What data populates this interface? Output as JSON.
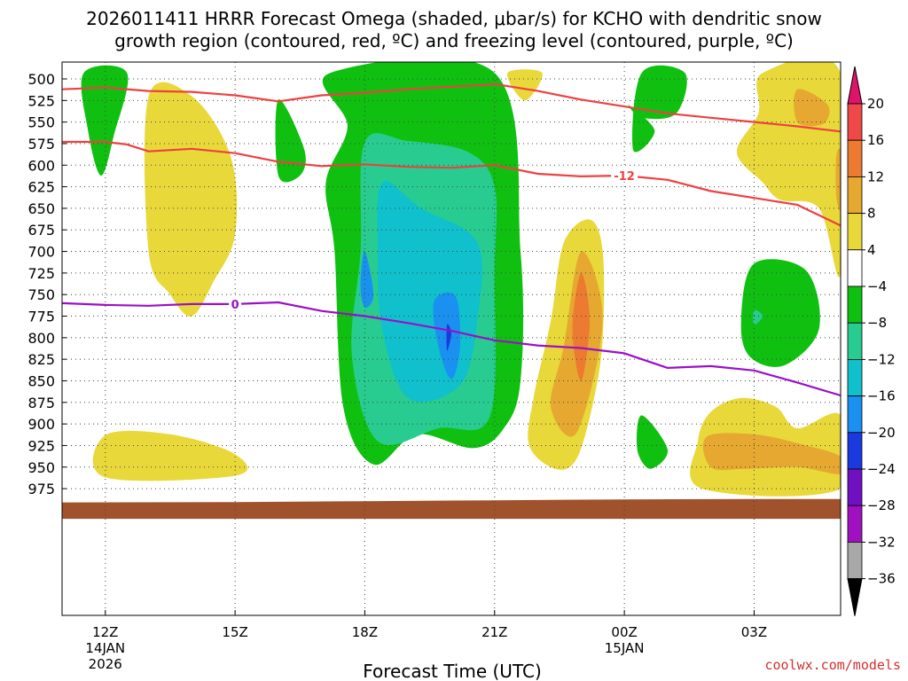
{
  "chart_data": {
    "type": "contour",
    "title_line1": "2026011411 HRRR Forecast Omega (shaded, μbar/s) for KCHO with dendritic snow",
    "title_line2": "growth region (contoured, red, ºC) and freezing level (contoured, purple, ºC)",
    "xlabel": "Forecast Time (UTC)",
    "credit": "coolwx.com/models",
    "ylabel_unit": "hPa",
    "y_levels": [
      500,
      525,
      550,
      575,
      600,
      625,
      650,
      675,
      700,
      725,
      750,
      775,
      800,
      825,
      850,
      875,
      900,
      925,
      950,
      975
    ],
    "x_range_hours": [
      11,
      29
    ],
    "x_ticks": [
      {
        "hour": 12,
        "label": "12Z",
        "sub1": "14JAN",
        "sub2": "2026"
      },
      {
        "hour": 15,
        "label": "15Z",
        "sub1": "",
        "sub2": ""
      },
      {
        "hour": 18,
        "label": "18Z",
        "sub1": "",
        "sub2": ""
      },
      {
        "hour": 21,
        "label": "21Z",
        "sub1": "",
        "sub2": ""
      },
      {
        "hour": 24,
        "label": "00Z",
        "sub1": "15JAN",
        "sub2": ""
      },
      {
        "hour": 27,
        "label": "03Z",
        "sub1": "",
        "sub2": ""
      }
    ],
    "colorbar": {
      "labels": [
        "20",
        "16",
        "12",
        "8",
        "4",
        "−4",
        "−8",
        "−12",
        "−16",
        "−20",
        "−24",
        "−28",
        "−32",
        "−36"
      ],
      "colors": [
        "#e0136a",
        "#ee4848",
        "#ec7a30",
        "#e6a830",
        "#e8d83a",
        "#ffffff",
        "#10c010",
        "#28cc90",
        "#10c0cc",
        "#1a90f0",
        "#1a3ae0",
        "#7010c0",
        "#a010c0",
        "#a8a8a8",
        "#000000"
      ]
    },
    "contours": [
      {
        "name": "dgz -12 upper",
        "color": "#ee4040",
        "label": "",
        "points": [
          [
            11,
            512
          ],
          [
            12,
            510
          ],
          [
            13,
            514
          ],
          [
            14,
            515
          ],
          [
            15,
            519
          ],
          [
            16,
            526
          ],
          [
            17,
            519
          ],
          [
            18,
            516
          ],
          [
            19,
            512
          ],
          [
            20,
            509
          ],
          [
            20.8,
            507
          ],
          [
            21,
            506
          ],
          [
            22,
            514
          ],
          [
            23,
            524
          ],
          [
            24,
            532
          ],
          [
            25,
            540
          ],
          [
            26,
            545
          ],
          [
            27,
            550
          ],
          [
            28,
            555
          ],
          [
            29,
            561
          ]
        ]
      },
      {
        "name": "dgz -12 lower",
        "color": "#ee4040",
        "label": "-12",
        "points": [
          [
            11,
            573
          ],
          [
            12,
            573
          ],
          [
            12.5,
            576
          ],
          [
            13,
            584
          ],
          [
            14,
            581
          ],
          [
            15,
            586
          ],
          [
            16,
            596
          ],
          [
            17,
            601
          ],
          [
            18,
            599
          ],
          [
            19,
            602
          ],
          [
            20,
            603
          ],
          [
            21,
            600
          ],
          [
            22,
            610
          ],
          [
            23,
            613
          ],
          [
            24,
            612
          ],
          [
            25,
            617
          ],
          [
            26,
            630
          ],
          [
            27,
            638
          ],
          [
            28,
            646
          ],
          [
            29,
            670
          ]
        ]
      },
      {
        "name": "freezing level 0C",
        "color": "#9b10c8",
        "label": "0",
        "points": [
          [
            11,
            760
          ],
          [
            12,
            762
          ],
          [
            13,
            763
          ],
          [
            14,
            761
          ],
          [
            15,
            761
          ],
          [
            16,
            759
          ],
          [
            17,
            769
          ],
          [
            18,
            775
          ],
          [
            19,
            783
          ],
          [
            20,
            792
          ],
          [
            21,
            803
          ],
          [
            22,
            809
          ],
          [
            23,
            812
          ],
          [
            24,
            818
          ],
          [
            25,
            835
          ],
          [
            26,
            833
          ],
          [
            27,
            838
          ],
          [
            28,
            852
          ],
          [
            29,
            867
          ]
        ]
      }
    ],
    "omega_regions": [
      {
        "value": "-4 to -8",
        "color": "#10c010",
        "points": [
          [
            11.5,
            493
          ],
          [
            12.5,
            493
          ],
          [
            12.2,
            565
          ],
          [
            11.9,
            612
          ],
          [
            11.6,
            560
          ]
        ]
      },
      {
        "value": "4 to 8",
        "color": "#e8d83a",
        "points": [
          [
            12.0,
            913
          ],
          [
            13.5,
            912
          ],
          [
            15.0,
            935
          ],
          [
            15.0,
            960
          ],
          [
            12.0,
            962
          ]
        ]
      },
      {
        "value": "4 to 8",
        "color": "#e8d83a",
        "points": [
          [
            13.0,
            520
          ],
          [
            14.0,
            520
          ],
          [
            14.9,
            590
          ],
          [
            15.0,
            680
          ],
          [
            14.5,
            735
          ],
          [
            14.0,
            775
          ],
          [
            13.5,
            750
          ],
          [
            13.0,
            700
          ]
        ]
      },
      {
        "value": "-4 to -8",
        "color": "#10c010",
        "points": [
          [
            16.0,
            524
          ],
          [
            16.6,
            582
          ],
          [
            16.5,
            612
          ],
          [
            16.0,
            612
          ]
        ]
      },
      {
        "value": "-4 to -8",
        "color": "#10c010",
        "points": [
          [
            17.2,
            493
          ],
          [
            21.0,
            493
          ],
          [
            21.6,
            700
          ],
          [
            21.6,
            850
          ],
          [
            21.2,
            906
          ],
          [
            20.5,
            928
          ],
          [
            19.2,
            912
          ],
          [
            18.2,
            947
          ],
          [
            17.5,
            880
          ],
          [
            17.3,
            700
          ],
          [
            17.1,
            620
          ],
          [
            17.6,
            555
          ]
        ]
      },
      {
        "value": "-8 to -12",
        "color": "#28cc90",
        "points": [
          [
            18.0,
            573
          ],
          [
            19.0,
            572
          ],
          [
            20.4,
            585
          ],
          [
            21.0,
            625
          ],
          [
            21.0,
            720
          ],
          [
            20.9,
            890
          ],
          [
            19.7,
            905
          ],
          [
            18.3,
            920
          ],
          [
            17.7,
            820
          ],
          [
            17.9,
            700
          ]
        ]
      },
      {
        "value": "-12 to -16",
        "color": "#10c0cc",
        "points": [
          [
            18.4,
            620
          ],
          [
            19.3,
            650
          ],
          [
            20.6,
            690
          ],
          [
            20.6,
            780
          ],
          [
            20.2,
            855
          ],
          [
            19.0,
            870
          ],
          [
            18.4,
            790
          ],
          [
            18.3,
            700
          ]
        ]
      },
      {
        "value": "-16 to -20",
        "color": "#1a90f0",
        "points": [
          [
            18.0,
            700
          ],
          [
            18.2,
            750
          ],
          [
            18.0,
            765
          ],
          [
            17.9,
            740
          ]
        ]
      },
      {
        "value": "-16 to -20",
        "color": "#1a90f0",
        "points": [
          [
            19.6,
            758
          ],
          [
            20.1,
            752
          ],
          [
            20.2,
            810
          ],
          [
            20.0,
            848
          ],
          [
            19.7,
            810
          ]
        ]
      },
      {
        "value": "-20 to -24",
        "color": "#1a3ae0",
        "points": [
          [
            19.9,
            785
          ],
          [
            20.0,
            795
          ],
          [
            19.9,
            815
          ]
        ]
      },
      {
        "value": "4 to 8",
        "color": "#e8d83a",
        "points": [
          [
            21.3,
            493
          ],
          [
            22.1,
            493
          ],
          [
            21.7,
            525
          ]
        ]
      },
      {
        "value": "4 to 8",
        "color": "#e8d83a",
        "points": [
          [
            22.6,
            690
          ],
          [
            23.2,
            663
          ],
          [
            23.5,
            700
          ],
          [
            23.5,
            800
          ],
          [
            23.3,
            870
          ],
          [
            22.9,
            940
          ],
          [
            22.4,
            952
          ],
          [
            21.8,
            925
          ],
          [
            21.9,
            870
          ],
          [
            22.3,
            780
          ]
        ]
      },
      {
        "value": "8 to 12",
        "color": "#e6a830",
        "points": [
          [
            23.0,
            700
          ],
          [
            23.5,
            780
          ],
          [
            22.9,
            910
          ],
          [
            22.3,
            880
          ],
          [
            22.6,
            810
          ]
        ]
      },
      {
        "value": "12 to 16",
        "color": "#ec7a30",
        "points": [
          [
            23.0,
            725
          ],
          [
            23.2,
            780
          ],
          [
            23.0,
            850
          ],
          [
            22.8,
            790
          ]
        ]
      },
      {
        "value": "-4 to -8",
        "color": "#10c010",
        "points": [
          [
            24.4,
            493
          ],
          [
            25.4,
            493
          ],
          [
            25.2,
            540
          ],
          [
            24.4,
            545
          ],
          [
            24.1,
            530
          ],
          [
            24.7,
            560
          ],
          [
            24.2,
            582
          ]
        ]
      },
      {
        "value": "-4 to -8",
        "color": "#10c010",
        "points": [
          [
            24.4,
            890
          ],
          [
            25.0,
            930
          ],
          [
            24.6,
            952
          ],
          [
            24.3,
            930
          ]
        ]
      },
      {
        "value": "-4 to -8",
        "color": "#10c010",
        "points": [
          [
            27.0,
            714
          ],
          [
            28.2,
            722
          ],
          [
            28.5,
            790
          ],
          [
            27.7,
            832
          ],
          [
            26.9,
            822
          ],
          [
            26.7,
            780
          ]
        ]
      },
      {
        "value": "-8 to -12",
        "color": "#28cc90",
        "points": [
          [
            27.0,
            768
          ],
          [
            27.2,
            775
          ],
          [
            27.0,
            785
          ]
        ]
      },
      {
        "value": "4 to 8",
        "color": "#e8d83a",
        "points": [
          [
            27.2,
            493
          ],
          [
            29.0,
            493
          ],
          [
            29.0,
            725
          ],
          [
            28.5,
            650
          ],
          [
            27.6,
            640
          ],
          [
            27.2,
            620
          ],
          [
            26.6,
            585
          ],
          [
            27.1,
            540
          ]
        ]
      },
      {
        "value": "8 to 12",
        "color": "#e6a830",
        "points": [
          [
            28.0,
            512
          ],
          [
            28.7,
            530
          ],
          [
            28.6,
            552
          ],
          [
            28.0,
            550
          ]
        ]
      },
      {
        "value": "8 to 12",
        "color": "#e6a830",
        "points": [
          [
            28.9,
            590
          ],
          [
            29.0,
            586
          ],
          [
            29.0,
            650
          ],
          [
            28.9,
            636
          ]
        ]
      },
      {
        "value": "4 to 8",
        "color": "#e8d83a",
        "points": [
          [
            26.0,
            886
          ],
          [
            26.7,
            870
          ],
          [
            27.5,
            880
          ],
          [
            28.0,
            905
          ],
          [
            29.0,
            890
          ],
          [
            29.0,
            975
          ],
          [
            25.8,
            975
          ],
          [
            25.7,
            920
          ]
        ]
      },
      {
        "value": "8 to 12",
        "color": "#e6a830",
        "points": [
          [
            25.9,
            915
          ],
          [
            27.0,
            912
          ],
          [
            28.2,
            925
          ],
          [
            29.0,
            938
          ],
          [
            29.0,
            958
          ],
          [
            28.0,
            950
          ],
          [
            26.8,
            952
          ],
          [
            26.0,
            950
          ]
        ]
      }
    ],
    "terrain": {
      "color": "#a0522d",
      "label": "surface"
    }
  }
}
